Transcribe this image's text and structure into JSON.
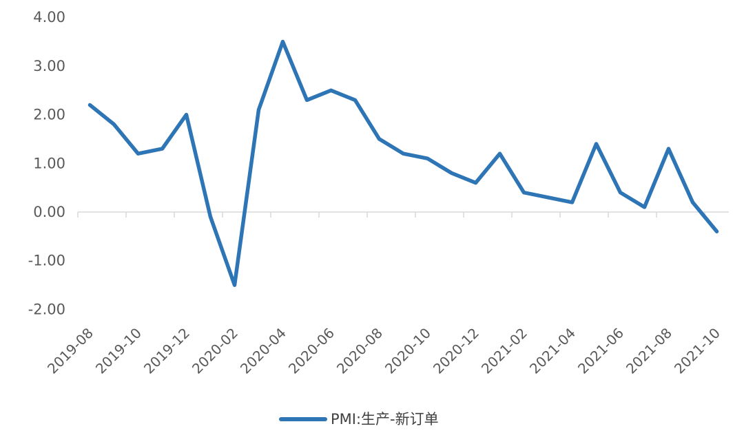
{
  "chart_data": {
    "type": "line",
    "title": "",
    "xlabel": "",
    "ylabel": "",
    "ylim": [
      -2,
      4
    ],
    "yticks": [
      "4.00",
      "3.00",
      "2.00",
      "1.00",
      "0.00",
      "-1.00",
      "-2.00"
    ],
    "x": [
      "2019-08",
      "2019-09",
      "2019-10",
      "2019-11",
      "2019-12",
      "2020-01",
      "2020-02",
      "2020-03",
      "2020-04",
      "2020-05",
      "2020-06",
      "2020-07",
      "2020-08",
      "2020-09",
      "2020-10",
      "2020-11",
      "2020-12",
      "2021-01",
      "2021-02",
      "2021-03",
      "2021-04",
      "2021-05",
      "2021-06",
      "2021-07",
      "2021-08",
      "2021-09",
      "2021-10"
    ],
    "xtick_labels": [
      "2019-08",
      "2019-10",
      "2019-12",
      "2020-02",
      "2020-04",
      "2020-06",
      "2020-08",
      "2020-10",
      "2020-12",
      "2021-02",
      "2021-04",
      "2021-06",
      "2021-08",
      "2021-10"
    ],
    "series": [
      {
        "name": "PMI:生产-新订单",
        "color": "#2E75B6",
        "values": [
          2.2,
          1.8,
          1.2,
          1.3,
          2.0,
          -0.1,
          -1.5,
          2.1,
          3.5,
          2.3,
          2.5,
          2.3,
          1.5,
          1.2,
          1.1,
          0.8,
          0.6,
          1.2,
          0.4,
          0.3,
          0.2,
          1.4,
          0.4,
          0.1,
          1.3,
          0.2,
          -0.4
        ]
      }
    ],
    "grid": false,
    "legend_position": "bottom"
  }
}
